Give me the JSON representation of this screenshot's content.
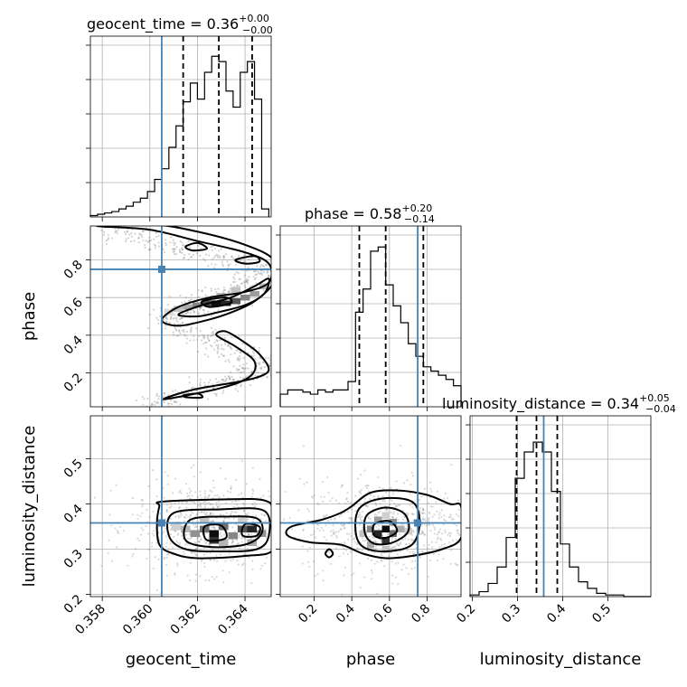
{
  "figure": {
    "titles": {
      "geocent_time": {
        "main": "geocent_time = 0.36",
        "sup": "+0.00",
        "sub": "−0.00"
      },
      "phase": {
        "main": "phase = 0.58",
        "sup": "+0.20",
        "sub": "−0.14"
      },
      "luminosity_distance": {
        "main": "luminosity_distance = 0.34",
        "sup": "+0.05",
        "sub": "−0.04"
      }
    },
    "colors": {
      "truth": "#4682b4",
      "hist": "#000000",
      "scatter": "#808080"
    }
  },
  "chart_data": {
    "type": "corner",
    "parameters": [
      "geocent_time",
      "phase",
      "luminosity_distance"
    ],
    "axis_labels": {
      "geocent_time": "geocent_time",
      "phase": "phase",
      "luminosity_distance": "luminosity_distance"
    },
    "ranges": {
      "geocent_time": [
        0.3575,
        0.3651
      ],
      "phase": [
        0.02,
        0.98
      ],
      "luminosity_distance": [
        0.195,
        0.595
      ]
    },
    "ticks": {
      "geocent_time": {
        "values": [
          0.358,
          0.36,
          0.362,
          0.364
        ],
        "labels": [
          "0.358",
          "0.360",
          "0.362",
          "0.364"
        ]
      },
      "phase": {
        "values": [
          0.2,
          0.4,
          0.6,
          0.8
        ],
        "labels": [
          "0.2",
          "0.4",
          "0.6",
          "0.8"
        ]
      },
      "luminosity_distance": {
        "values": [
          0.2,
          0.3,
          0.4,
          0.5
        ],
        "labels": [
          "0.2",
          "0.3",
          "0.4",
          "0.5"
        ]
      }
    },
    "truths": {
      "geocent_time": 0.3605,
      "phase": 0.75,
      "luminosity_distance": 0.358
    },
    "quantiles": {
      "geocent_time": [
        0.3614,
        0.3629,
        0.3643
      ],
      "phase": [
        0.44,
        0.58,
        0.78
      ],
      "luminosity_distance": [
        0.298,
        0.342,
        0.388
      ]
    },
    "histograms": {
      "geocent_time": {
        "edges": [
          0.3575,
          0.3578,
          0.3581,
          0.3584,
          0.3587,
          0.359,
          0.3593,
          0.3596,
          0.3599,
          0.3602,
          0.3605,
          0.3608,
          0.3611,
          0.3614,
          0.3617,
          0.362,
          0.3623,
          0.3626,
          0.3629,
          0.3632,
          0.3635,
          0.3638,
          0.3641,
          0.3644,
          0.3647,
          0.365
        ],
        "counts": [
          1,
          2,
          3,
          4,
          6,
          8,
          11,
          14,
          19,
          28,
          36,
          52,
          68,
          86,
          100,
          88,
          108,
          120,
          116,
          94,
          82,
          108,
          116,
          88,
          6
        ],
        "ymax": 135
      },
      "phase": {
        "edges": [
          0.02,
          0.06,
          0.1,
          0.14,
          0.18,
          0.22,
          0.26,
          0.3,
          0.34,
          0.38,
          0.42,
          0.46,
          0.5,
          0.54,
          0.58,
          0.62,
          0.66,
          0.7,
          0.74,
          0.78,
          0.82,
          0.86,
          0.9,
          0.94,
          0.98
        ],
        "counts": [
          6,
          8,
          8,
          7,
          6,
          8,
          7,
          8,
          8,
          12,
          45,
          56,
          74,
          76,
          58,
          48,
          40,
          30,
          24,
          19,
          17,
          15,
          13,
          10
        ],
        "ymax": 86
      },
      "luminosity_distance": {
        "edges": [
          0.195,
          0.215,
          0.235,
          0.255,
          0.275,
          0.295,
          0.315,
          0.335,
          0.355,
          0.375,
          0.395,
          0.415,
          0.435,
          0.455,
          0.475,
          0.495,
          0.515,
          0.535,
          0.555,
          0.575,
          0.595
        ],
        "counts": [
          1,
          3,
          8,
          18,
          36,
          72,
          88,
          94,
          88,
          64,
          32,
          18,
          9,
          5,
          2,
          1,
          1,
          0,
          0,
          0
        ],
        "ymax": 110
      }
    },
    "density": {
      "phase_vs_geocent_time": {
        "x": "geocent_time",
        "y": "phase",
        "cells": [
          [
            0.3628,
            0.57,
            1.0
          ],
          [
            0.3632,
            0.57,
            0.9
          ],
          [
            0.3624,
            0.57,
            0.75
          ],
          [
            0.3636,
            0.58,
            0.7
          ],
          [
            0.364,
            0.6,
            0.5
          ],
          [
            0.362,
            0.56,
            0.5
          ],
          [
            0.3616,
            0.55,
            0.35
          ],
          [
            0.3644,
            0.62,
            0.4
          ],
          [
            0.3648,
            0.66,
            0.3
          ],
          [
            0.3636,
            0.64,
            0.25
          ],
          [
            0.3612,
            0.54,
            0.25
          ],
          [
            0.3608,
            0.52,
            0.15
          ],
          [
            0.363,
            0.61,
            0.3
          ]
        ],
        "cell_w": 0.0004,
        "cell_h": 0.03,
        "contours": [
          [
            [
              0.3578,
              0.98
            ],
            [
              0.36,
              0.96
            ],
            [
              0.362,
              0.9
            ],
            [
              0.364,
              0.84
            ],
            [
              0.365,
              0.78
            ],
            [
              0.365,
              0.68
            ],
            [
              0.364,
              0.63
            ],
            [
              0.3625,
              0.6
            ],
            [
              0.3612,
              0.55
            ],
            [
              0.3605,
              0.48
            ],
            [
              0.3612,
              0.45
            ],
            [
              0.3624,
              0.48
            ],
            [
              0.3634,
              0.52
            ],
            [
              0.3644,
              0.58
            ],
            [
              0.3652,
              0.68
            ],
            [
              0.3652,
              0.8
            ],
            [
              0.364,
              0.88
            ],
            [
              0.362,
              0.95
            ],
            [
              0.36,
              0.99
            ]
          ],
          [
            [
              0.3628,
              0.52
            ],
            [
              0.364,
              0.56
            ],
            [
              0.3648,
              0.62
            ],
            [
              0.365,
              0.7
            ],
            [
              0.3644,
              0.66
            ],
            [
              0.3634,
              0.6
            ],
            [
              0.3622,
              0.56
            ],
            [
              0.3612,
              0.51
            ],
            [
              0.362,
              0.5
            ]
          ],
          [
            [
              0.3625,
              0.55
            ],
            [
              0.3634,
              0.57
            ],
            [
              0.3632,
              0.6
            ],
            [
              0.3622,
              0.58
            ]
          ],
          [
            [
              0.3615,
              0.87
            ],
            [
              0.362,
              0.89
            ],
            [
              0.3624,
              0.86
            ],
            [
              0.3618,
              0.85
            ]
          ],
          [
            [
              0.3636,
              0.8
            ],
            [
              0.3644,
              0.82
            ],
            [
              0.3646,
              0.79
            ],
            [
              0.364,
              0.78
            ]
          ],
          [
            [
              0.3632,
              0.42
            ],
            [
              0.364,
              0.36
            ],
            [
              0.3646,
              0.3
            ],
            [
              0.365,
              0.22
            ],
            [
              0.3646,
              0.18
            ],
            [
              0.3636,
              0.15
            ],
            [
              0.3618,
              0.11
            ],
            [
              0.3606,
              0.06
            ],
            [
              0.363,
              0.12
            ],
            [
              0.3642,
              0.18
            ],
            [
              0.3644,
              0.26
            ],
            [
              0.3636,
              0.34
            ],
            [
              0.3628,
              0.4
            ]
          ],
          [
            [
              0.3614,
              0.08
            ],
            [
              0.362,
              0.09
            ],
            [
              0.3622,
              0.07
            ],
            [
              0.3616,
              0.07
            ]
          ]
        ]
      },
      "luminosity_distance_vs_geocent_time": {
        "x": "geocent_time",
        "y": "luminosity_distance",
        "cells": [
          [
            0.3627,
            0.335,
            1.0
          ],
          [
            0.3627,
            0.32,
            0.85
          ],
          [
            0.3623,
            0.345,
            0.6
          ],
          [
            0.3631,
            0.35,
            0.6
          ],
          [
            0.3639,
            0.345,
            0.7
          ],
          [
            0.3643,
            0.345,
            0.9
          ],
          [
            0.3619,
            0.335,
            0.45
          ],
          [
            0.3635,
            0.33,
            0.5
          ],
          [
            0.3647,
            0.335,
            0.45
          ],
          [
            0.3615,
            0.345,
            0.3
          ],
          [
            0.3611,
            0.35,
            0.2
          ],
          [
            0.3623,
            0.365,
            0.25
          ],
          [
            0.3639,
            0.365,
            0.2
          ],
          [
            0.3631,
            0.315,
            0.3
          ],
          [
            0.3643,
            0.315,
            0.35
          ]
        ],
        "cell_w": 0.0004,
        "cell_h": 0.015,
        "contours": [
          [
            [
              0.3605,
              0.405
            ],
            [
              0.363,
              0.41
            ],
            [
              0.3648,
              0.408
            ],
            [
              0.3652,
              0.38
            ],
            [
              0.3652,
              0.3
            ],
            [
              0.364,
              0.285
            ],
            [
              0.362,
              0.28
            ],
            [
              0.361,
              0.29
            ],
            [
              0.3604,
              0.31
            ],
            [
              0.3603,
              0.36
            ],
            [
              0.3604,
              0.395
            ]
          ],
          [
            [
              0.361,
              0.38
            ],
            [
              0.363,
              0.388
            ],
            [
              0.3648,
              0.385
            ],
            [
              0.365,
              0.33
            ],
            [
              0.3645,
              0.3
            ],
            [
              0.363,
              0.295
            ],
            [
              0.3615,
              0.3
            ],
            [
              0.3608,
              0.33
            ]
          ],
          [
            [
              0.3617,
              0.365
            ],
            [
              0.3632,
              0.372
            ],
            [
              0.3645,
              0.368
            ],
            [
              0.3647,
              0.335
            ],
            [
              0.364,
              0.31
            ],
            [
              0.3625,
              0.305
            ],
            [
              0.3615,
              0.32
            ]
          ],
          [
            [
              0.3623,
              0.35
            ],
            [
              0.363,
              0.352
            ],
            [
              0.3632,
              0.325
            ],
            [
              0.3624,
              0.32
            ]
          ],
          [
            [
              0.364,
              0.355
            ],
            [
              0.3646,
              0.35
            ],
            [
              0.3645,
              0.33
            ],
            [
              0.3639,
              0.33
            ]
          ]
        ]
      },
      "luminosity_distance_vs_phase": {
        "x": "phase",
        "y": "luminosity_distance",
        "cells": [
          [
            0.58,
            0.345,
            1.0
          ],
          [
            0.54,
            0.335,
            0.9
          ],
          [
            0.58,
            0.32,
            0.85
          ],
          [
            0.62,
            0.335,
            0.6
          ],
          [
            0.5,
            0.345,
            0.5
          ],
          [
            0.62,
            0.36,
            0.45
          ],
          [
            0.54,
            0.365,
            0.4
          ],
          [
            0.66,
            0.345,
            0.35
          ],
          [
            0.5,
            0.31,
            0.35
          ],
          [
            0.7,
            0.34,
            0.2
          ],
          [
            0.46,
            0.335,
            0.25
          ],
          [
            0.58,
            0.375,
            0.2
          ],
          [
            0.58,
            0.3,
            0.25
          ]
        ],
        "cell_w": 0.04,
        "cell_h": 0.015,
        "contours": [
          [
            [
              0.4,
              0.395
            ],
            [
              0.5,
              0.425
            ],
            [
              0.64,
              0.43
            ],
            [
              0.8,
              0.42
            ],
            [
              0.92,
              0.4
            ],
            [
              0.98,
              0.395
            ],
            [
              0.98,
              0.325
            ],
            [
              0.88,
              0.3
            ],
            [
              0.72,
              0.285
            ],
            [
              0.58,
              0.28
            ],
            [
              0.46,
              0.29
            ],
            [
              0.34,
              0.31
            ],
            [
              0.18,
              0.315
            ],
            [
              0.06,
              0.33
            ],
            [
              0.08,
              0.35
            ],
            [
              0.24,
              0.365
            ],
            [
              0.34,
              0.38
            ]
          ],
          [
            [
              0.44,
              0.39
            ],
            [
              0.56,
              0.412
            ],
            [
              0.72,
              0.405
            ],
            [
              0.76,
              0.36
            ],
            [
              0.72,
              0.31
            ],
            [
              0.58,
              0.295
            ],
            [
              0.46,
              0.305
            ],
            [
              0.42,
              0.34
            ]
          ],
          [
            [
              0.48,
              0.375
            ],
            [
              0.58,
              0.392
            ],
            [
              0.68,
              0.378
            ],
            [
              0.7,
              0.34
            ],
            [
              0.62,
              0.315
            ],
            [
              0.52,
              0.312
            ],
            [
              0.47,
              0.335
            ]
          ],
          [
            [
              0.52,
              0.355
            ],
            [
              0.6,
              0.362
            ],
            [
              0.64,
              0.34
            ],
            [
              0.58,
              0.325
            ],
            [
              0.52,
              0.33
            ]
          ],
          [
            [
              0.26,
              0.29
            ],
            [
              0.28,
              0.3
            ],
            [
              0.3,
              0.29
            ],
            [
              0.28,
              0.282
            ]
          ]
        ]
      }
    },
    "scatter": {
      "phase_vs_geocent_time": {
        "bands": [
          {
            "x0": 0.3578,
            "y0": 0.98,
            "x1": 0.365,
            "y1": 0.74,
            "spread_x": 0.0004,
            "spread_y": 0.03,
            "n": 220
          },
          {
            "x0": 0.365,
            "y0": 0.72,
            "x1": 0.3605,
            "y1": 0.48,
            "spread_x": 0.0004,
            "spread_y": 0.03,
            "n": 220
          },
          {
            "x0": 0.3605,
            "y0": 0.48,
            "x1": 0.365,
            "y1": 0.24,
            "spread_x": 0.0004,
            "spread_y": 0.03,
            "n": 200
          },
          {
            "x0": 0.365,
            "y0": 0.22,
            "x1": 0.36,
            "y1": 0.03,
            "spread_x": 0.0004,
            "spread_y": 0.025,
            "n": 200
          }
        ]
      },
      "luminosity_distance_vs_geocent_time": {
        "blobs": [
          {
            "cx": 0.3625,
            "cy": 0.35,
            "sx": 0.0016,
            "sy": 0.05,
            "n": 700
          }
        ]
      },
      "luminosity_distance_vs_phase": {
        "blobs": [
          {
            "cx": 0.58,
            "cy": 0.35,
            "sx": 0.22,
            "sy": 0.05,
            "n": 700
          }
        ]
      }
    }
  }
}
